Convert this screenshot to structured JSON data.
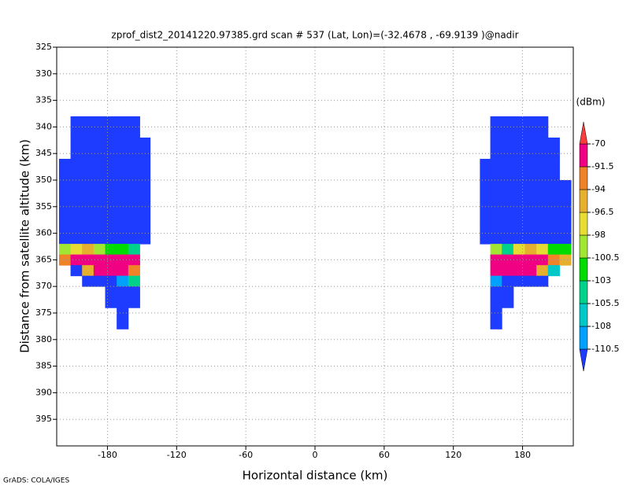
{
  "chart_data": {
    "type": "heatmap",
    "title": "zprof_dist2_20141220.97385.grd  scan # 537  (Lat, Lon)=(-32.4678 , -69.9139 )@nadir",
    "x_label": "Horizontal distance (km)",
    "y_label": "Distance from satellite altitude (km)",
    "credit": "GrADS: COLA/IGES",
    "colorbar_title": "(dBm)",
    "xlim": [
      -224,
      224
    ],
    "ylim": [
      325,
      400
    ],
    "y_inverted": true,
    "xticks": [
      -180,
      -120,
      -60,
      0,
      60,
      120,
      180
    ],
    "yticks": [
      325,
      330,
      335,
      340,
      345,
      350,
      355,
      360,
      365,
      370,
      375,
      380,
      385,
      390,
      395
    ],
    "grid": true,
    "levels": [
      -110.5,
      -108,
      -105.5,
      -103,
      -100.5,
      -98,
      -96.5,
      -94,
      -91.5,
      -70
    ],
    "colors": [
      "#1e3cff",
      "#00a0ff",
      "#00c8c8",
      "#00d28c",
      "#00dc00",
      "#a0e632",
      "#e6dc32",
      "#e6af2d",
      "#f08228",
      "#f00082",
      "#fa3c3c"
    ],
    "x_edges": [
      -222,
      -212,
      -202,
      -192,
      -182,
      -172,
      -162,
      -152,
      -143,
      143,
      152,
      162,
      172,
      182,
      192,
      202,
      212,
      222
    ],
    "y_edges": [
      338,
      342,
      346,
      350,
      354,
      358,
      362,
      364,
      366,
      368,
      370,
      374,
      378
    ],
    "z": [
      [
        null,
        -112,
        -112,
        -112,
        -112,
        -112,
        -112,
        null,
        null,
        null,
        -112,
        -112,
        -112,
        -112,
        -112,
        null,
        null
      ],
      [
        null,
        -112,
        -112,
        -112,
        -112,
        -112,
        -112,
        -112,
        null,
        null,
        -112,
        -112,
        -112,
        -112,
        -112,
        -112,
        null
      ],
      [
        -112,
        -112,
        -112,
        -112,
        -112,
        -112,
        -112,
        -112,
        null,
        -112,
        -112,
        -112,
        -112,
        -112,
        -112,
        -112,
        null
      ],
      [
        -112,
        -112,
        -112,
        -112,
        -112,
        -112,
        -112,
        -112,
        null,
        -112,
        -112,
        -112,
        -112,
        -112,
        -112,
        -112,
        -112
      ],
      [
        -112,
        -112,
        -112,
        -112,
        -112,
        -112,
        -112,
        -112,
        null,
        -112,
        -112,
        -112,
        -112,
        -112,
        -112,
        -112,
        -112
      ],
      [
        -112,
        -112,
        -112,
        -112,
        -112,
        -112,
        -112,
        -112,
        null,
        -112,
        -112,
        -112,
        -112,
        -112,
        -112,
        -112,
        -112
      ],
      [
        -100.5,
        -97,
        -95,
        -99,
        -103,
        -101,
        -104,
        null,
        null,
        null,
        -100,
        -104,
        -98,
        -96,
        -97,
        -101,
        -103
      ],
      [
        -92,
        -85,
        -80,
        -80,
        -82,
        -80,
        -80,
        null,
        null,
        null,
        -80,
        -82,
        -80,
        -85,
        -80,
        -92,
        -96
      ],
      [
        null,
        -112,
        -95,
        -88,
        -85,
        -80,
        -92,
        null,
        null,
        null,
        -85,
        -80,
        -84,
        -88,
        -95,
        -106,
        null
      ],
      [
        null,
        null,
        -112,
        -112,
        -112,
        -109,
        -104,
        null,
        null,
        null,
        -109,
        -112,
        -112,
        -112,
        -112,
        null,
        null
      ],
      [
        null,
        null,
        null,
        null,
        -112,
        -112,
        -112,
        null,
        null,
        null,
        -112,
        -112,
        null,
        null,
        null,
        null,
        null
      ],
      [
        null,
        null,
        null,
        null,
        null,
        -112,
        null,
        null,
        null,
        null,
        -112,
        null,
        null,
        null,
        null,
        null,
        null
      ]
    ]
  }
}
